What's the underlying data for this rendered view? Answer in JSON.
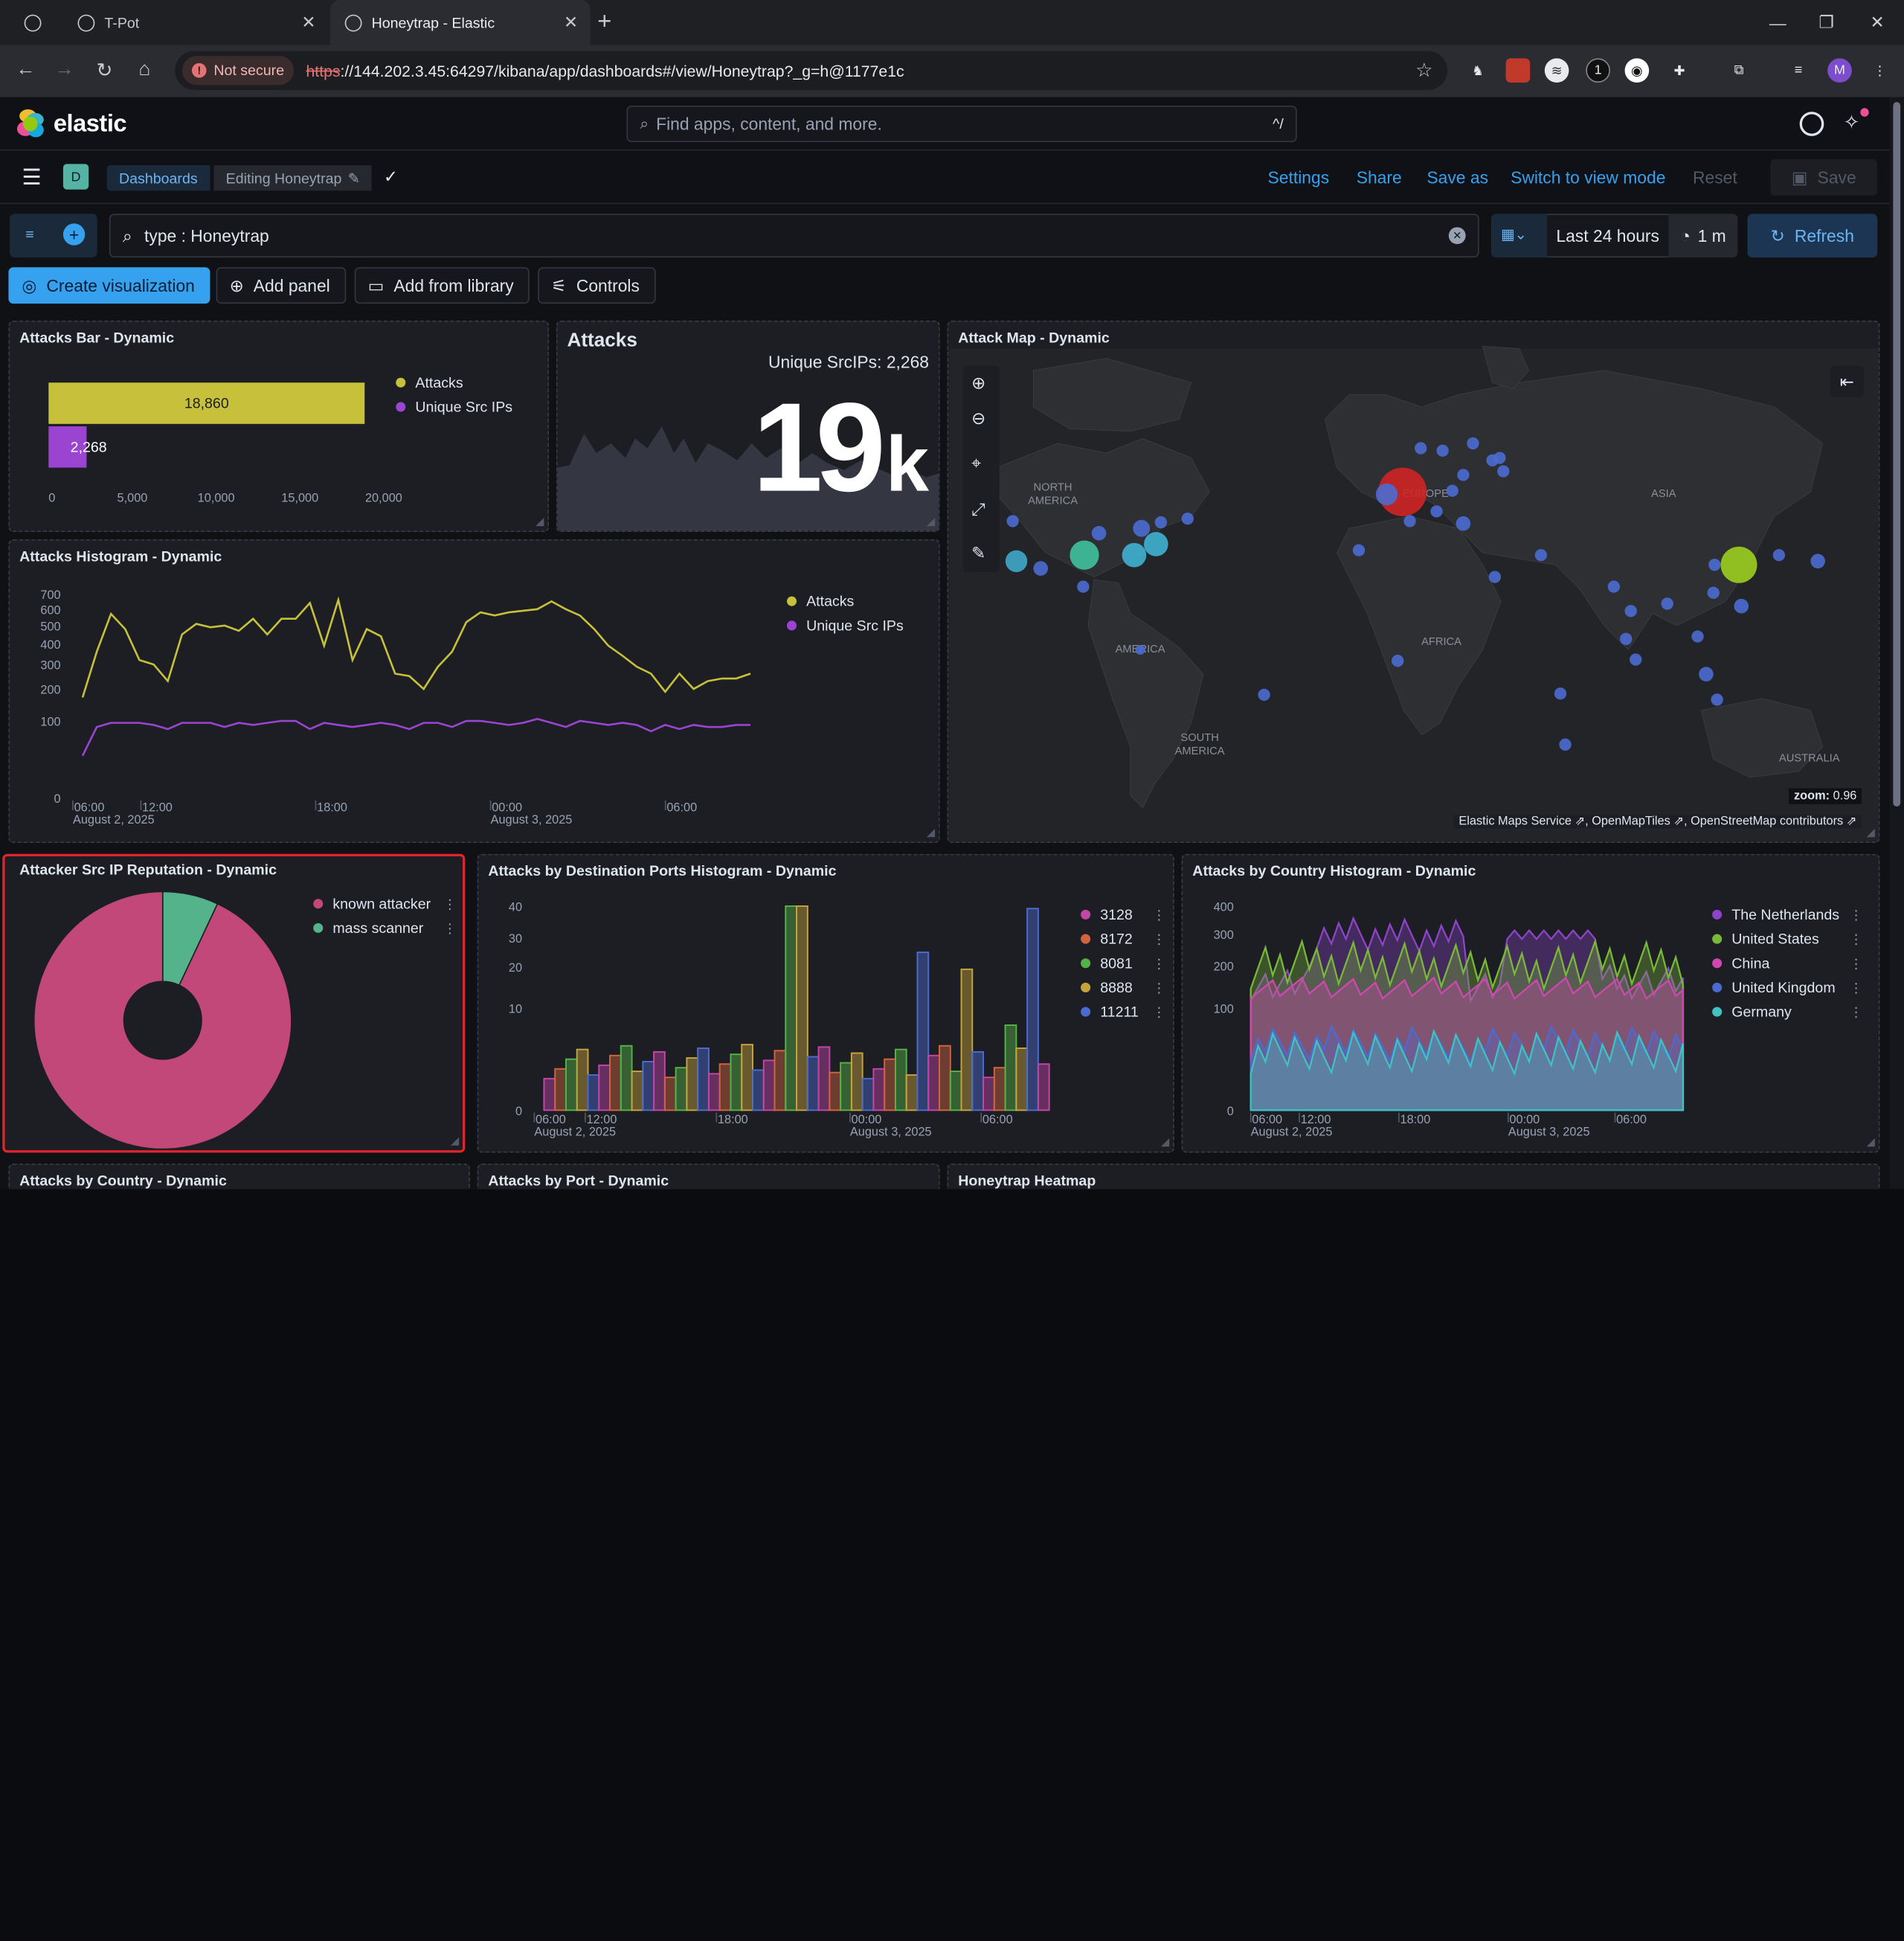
{
  "browser": {
    "tabs": [
      {
        "label": ""
      },
      {
        "label": "T-Pot"
      },
      {
        "label": "Honeytrap - Elastic"
      }
    ],
    "not_secure": "Not secure",
    "url_scheme": "https",
    "url_rest": "://144.202.3.45:64297/kibana/app/dashboards#/view/Honeytrap?_g=h@1177e1c",
    "profile_initial": "M",
    "ext_count": "1"
  },
  "kibana": {
    "logo_text": "elastic",
    "search_placeholder": "Find apps, content, and more.",
    "search_shortcut": "^/",
    "space_initial": "D",
    "breadcrumb_1": "Dashboards",
    "breadcrumb_2": "Editing Honeytrap",
    "menu": {
      "settings": "Settings",
      "share": "Share",
      "save_as": "Save as",
      "switch": "Switch to view mode",
      "reset": "Reset",
      "save": "Save"
    },
    "query": "type : Honeytrap",
    "date_range": "Last 24 hours",
    "interval": "1 m",
    "refresh": "Refresh",
    "actions": {
      "create": "Create visualization",
      "add_panel": "Add panel",
      "add_library": "Add from library",
      "controls": "Controls"
    }
  },
  "panels": {
    "bar": {
      "title": "Attacks Bar - Dynamic",
      "legend": [
        "Attacks",
        "Unique Src IPs"
      ],
      "colors": [
        "#c6c03b",
        "#9b44d1"
      ],
      "ticks": [
        "0",
        "5,000",
        "10,000",
        "15,000",
        "20,000"
      ]
    },
    "metric": {
      "title": "Attacks",
      "subtitle": "Unique SrcIPs: 2,268",
      "value": "19",
      "suffix": "k"
    },
    "map": {
      "title": "Attack Map - Dynamic",
      "labels": {
        "north_america_1": "NORTH",
        "north_america_2": "AMERICA",
        "europe": "EUROPE",
        "asia": "ASIA",
        "africa": "AFRICA",
        "america": "AMERICA",
        "south_america_1": "SOUTH",
        "south_america_2": "AMERICA",
        "australia": "AUSTRALIA"
      },
      "zoom_label": "zoom:",
      "zoom_value": "0.96",
      "attribution": "Elastic Maps Service ⇗, OpenMapTiles ⇗, OpenStreetMap contributors ⇗"
    },
    "histogram": {
      "title": "Attacks Histogram - Dynamic",
      "legend": [
        "Attacks",
        "Unique Src IPs"
      ],
      "y_ticks": [
        "700",
        "600",
        "500",
        "400",
        "300",
        "200",
        "100",
        "0"
      ],
      "x_ticks": [
        "06:00",
        "12:00",
        "18:00",
        "00:00",
        "06:00"
      ],
      "x_dates": [
        "August 2, 2025",
        "August 3, 2025"
      ]
    },
    "reputation": {
      "title": "Attacker Src IP Reputation - Dynamic",
      "legend": [
        "known attacker",
        "mass scanner"
      ],
      "colors": [
        "#c2487a",
        "#54b38a"
      ]
    },
    "ports": {
      "title": "Attacks by Destination Ports Histogram - Dynamic",
      "legend": [
        "3128",
        "8172",
        "8081",
        "8888",
        "11211"
      ],
      "colors": [
        "#c445a8",
        "#d1643f",
        "#54b346",
        "#c6a33b",
        "#4b6bd1"
      ],
      "y_ticks": [
        "40",
        "30",
        "20",
        "10",
        "0"
      ],
      "x_ticks": [
        "06:00",
        "12:00",
        "18:00",
        "00:00",
        "06:00"
      ],
      "x_dates": [
        "August 2, 2025",
        "August 3, 2025"
      ]
    },
    "country": {
      "title": "Attacks by Country Histogram - Dynamic",
      "legend": [
        "The Netherlands",
        "United States",
        "China",
        "United Kingdom",
        "Germany"
      ],
      "colors": [
        "#8e44c9",
        "#7ab83a",
        "#d147b0",
        "#4b6bd1",
        "#3fc2c0"
      ],
      "y_ticks": [
        "400",
        "300",
        "200",
        "100",
        "0"
      ],
      "x_ticks": [
        "06:00",
        "12:00",
        "18:00",
        "00:00",
        "06:00"
      ],
      "x_dates": [
        "August 2, 2025",
        "August 3, 2025"
      ]
    },
    "bottom": {
      "country_title": "Attacks by Country - Dynamic",
      "port_title": "Attacks by Port - Dynamic",
      "heatmap_title": "Honeytrap Heatmap"
    }
  },
  "chart_data": [
    {
      "type": "bar",
      "title": "Attacks Bar - Dynamic",
      "categories": [
        "Attacks",
        "Unique Src IPs"
      ],
      "values": [
        18860,
        2268
      ],
      "value_labels": [
        "18,860",
        "2,268"
      ],
      "xlim": [
        0,
        20000
      ],
      "orientation": "horizontal"
    },
    {
      "type": "line",
      "title": "Attacks Histogram - Dynamic",
      "y_scale": "sqrt",
      "ylim": [
        0,
        700
      ],
      "series": [
        {
          "name": "Attacks",
          "values": [
            170,
            360,
            570,
            480,
            320,
            300,
            230,
            450,
            510,
            490,
            500,
            470,
            540,
            450,
            540,
            540,
            640,
            390,
            660,
            320,
            480,
            440,
            260,
            250,
            200,
            290,
            360,
            520,
            580,
            560,
            580,
            590,
            600,
            650,
            600,
            560,
            480,
            390,
            340,
            290,
            260,
            190,
            260,
            200,
            230,
            240,
            240,
            260
          ]
        },
        {
          "name": "Unique Src IPs",
          "values": [
            30,
            85,
            95,
            95,
            95,
            90,
            80,
            95,
            95,
            95,
            85,
            95,
            90,
            95,
            100,
            100,
            80,
            95,
            90,
            85,
            90,
            95,
            90,
            80,
            95,
            95,
            85,
            100,
            100,
            95,
            90,
            95,
            105,
            95,
            85,
            100,
            95,
            90,
            95,
            90,
            75,
            90,
            80,
            90,
            85,
            85,
            90,
            90
          ]
        }
      ]
    },
    {
      "type": "pie",
      "title": "Attacker Src IP Reputation - Dynamic",
      "categories": [
        "known attacker",
        "mass scanner"
      ],
      "values": [
        93,
        7
      ]
    }
  ]
}
